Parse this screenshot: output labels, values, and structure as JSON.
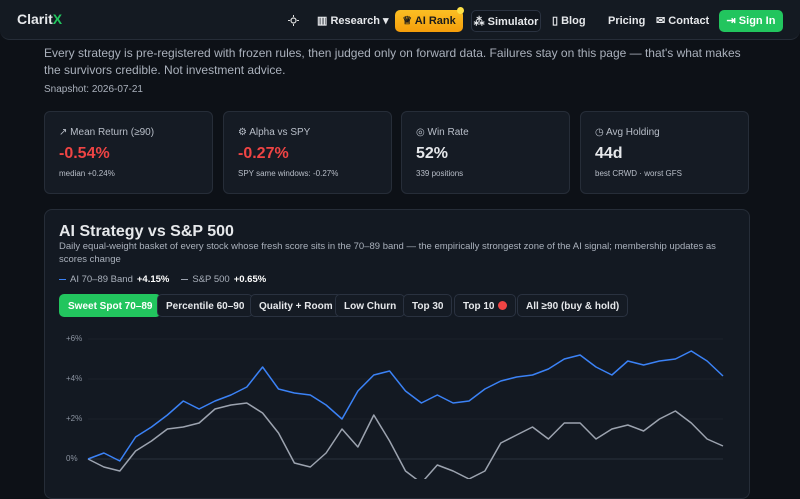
{
  "nav": {
    "logo": "Clarit",
    "logo_mark": "X",
    "items": [
      "Research",
      "AI Rank",
      "Simulator",
      "Blog",
      "Pricing",
      "Contact"
    ],
    "sign_in": "Sign In"
  },
  "intro": {
    "text": "Every strategy is pre-registered with frozen rules, then judged only on forward data. Failures stay on this page — that's what makes the survivors credible. Not investment advice.",
    "snapshot": "Snapshot: 2026-07-21"
  },
  "cards": [
    {
      "label": "Mean Return (≥90)",
      "value": "-0.54%",
      "sub": "median +0.24%"
    },
    {
      "label": "Alpha vs SPY",
      "value": "-0.27%",
      "sub": "SPY same windows: -0.27%"
    },
    {
      "label": "Win Rate",
      "value": "52%",
      "sub": "339 positions"
    },
    {
      "label": "Avg Holding",
      "value": "44d",
      "sub": "best CRWD · worst GFS"
    }
  ],
  "chart_data": {
    "type": "line",
    "title": "AI Strategy vs S&P 500",
    "subtitle": "Daily equal-weight basket of every stock whose fresh score sits in the 70–89 band — the empirically strongest zone of the AI signal; membership updates as scores change",
    "tabs": [
      "Sweet Spot 70–89",
      "Percentile 60–90",
      "Quality + Room",
      "Low Churn",
      "Top 30",
      "Top 10",
      "All ≥90 (buy & hold)"
    ],
    "categories": [
      null,
      null,
      null,
      null,
      null,
      null,
      null,
      null,
      null,
      null,
      null,
      null,
      null,
      null,
      null,
      null,
      null,
      null,
      null,
      null,
      null,
      null,
      null,
      null,
      null,
      null,
      null,
      null,
      null,
      null,
      null,
      null,
      null,
      null,
      null,
      null,
      null,
      null,
      null,
      null,
      null
    ],
    "series": [
      {
        "name": "AI 70–89 Band",
        "total_label": "+4.15%",
        "color": "#3b82f6",
        "values": [
          0,
          0.3,
          -0.1,
          1.1,
          1.6,
          2.2,
          2.9,
          2.5,
          2.9,
          3.2,
          3.6,
          4.6,
          3.5,
          3.3,
          3.2,
          2.7,
          2.0,
          3.4,
          4.2,
          4.4,
          3.4,
          2.8,
          3.2,
          2.8,
          2.9,
          3.5,
          3.9,
          4.1,
          4.2,
          4.5,
          5.0,
          5.2,
          4.6,
          4.2,
          4.9,
          4.7,
          4.9,
          5.0,
          5.4,
          4.9,
          4.15
        ]
      },
      {
        "name": "S&P 500",
        "total_label": "+0.65%",
        "color": "#9ca3af",
        "values": [
          0,
          -0.4,
          -0.6,
          0.4,
          0.9,
          1.5,
          1.6,
          1.8,
          2.5,
          2.7,
          2.8,
          2.3,
          1.3,
          -0.2,
          -0.4,
          0.3,
          1.5,
          0.6,
          2.2,
          0.9,
          -0.6,
          -1.2,
          -0.3,
          -0.6,
          -1.0,
          -0.6,
          0.8,
          1.2,
          1.6,
          1.0,
          1.8,
          1.8,
          1.0,
          1.5,
          1.7,
          1.4,
          2.0,
          2.4,
          1.8,
          1.0,
          0.65
        ]
      }
    ],
    "ylim": [
      -1,
      6
    ],
    "yticks": [
      {
        "value": 0,
        "label": "0%"
      },
      {
        "value": 2,
        "label": "+2%"
      },
      {
        "value": 4,
        "label": "+4%"
      },
      {
        "value": 6,
        "label": "+6%"
      }
    ],
    "grid": true
  }
}
